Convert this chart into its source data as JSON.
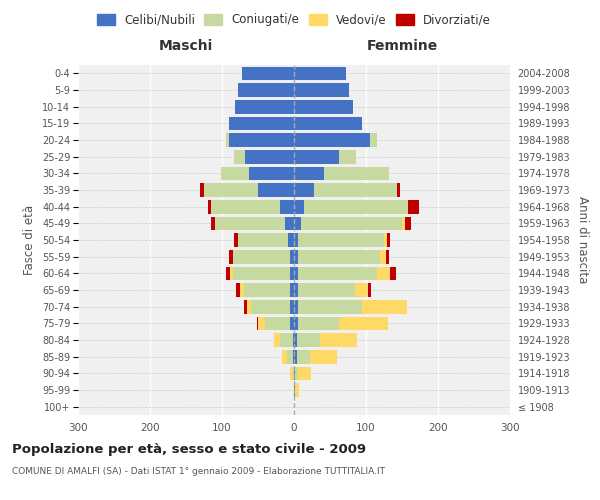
{
  "age_groups": [
    "100+",
    "95-99",
    "90-94",
    "85-89",
    "80-84",
    "75-79",
    "70-74",
    "65-69",
    "60-64",
    "55-59",
    "50-54",
    "45-49",
    "40-44",
    "35-39",
    "30-34",
    "25-29",
    "20-24",
    "15-19",
    "10-14",
    "5-9",
    "0-4"
  ],
  "birth_years": [
    "≤ 1908",
    "1909-1913",
    "1914-1918",
    "1919-1923",
    "1924-1928",
    "1929-1933",
    "1934-1938",
    "1939-1943",
    "1944-1948",
    "1949-1953",
    "1954-1958",
    "1959-1963",
    "1964-1968",
    "1969-1973",
    "1974-1978",
    "1979-1983",
    "1984-1988",
    "1989-1993",
    "1994-1998",
    "1999-2003",
    "2004-2008"
  ],
  "m_cel": [
    0,
    0,
    0,
    2,
    2,
    5,
    5,
    5,
    5,
    5,
    8,
    12,
    20,
    50,
    62,
    68,
    90,
    90,
    82,
    78,
    72
  ],
  "m_con": [
    0,
    0,
    2,
    8,
    18,
    35,
    55,
    65,
    80,
    80,
    70,
    98,
    95,
    75,
    40,
    15,
    5,
    0,
    0,
    0,
    0
  ],
  "m_ved": [
    0,
    0,
    4,
    6,
    8,
    10,
    5,
    5,
    4,
    0,
    0,
    0,
    0,
    0,
    0,
    0,
    0,
    0,
    0,
    0,
    0
  ],
  "m_div": [
    0,
    0,
    0,
    0,
    0,
    2,
    5,
    5,
    5,
    5,
    5,
    5,
    4,
    5,
    0,
    0,
    0,
    0,
    0,
    0,
    0
  ],
  "f_nub": [
    0,
    2,
    2,
    4,
    4,
    5,
    5,
    5,
    5,
    5,
    5,
    10,
    14,
    28,
    42,
    62,
    105,
    95,
    82,
    76,
    72
  ],
  "f_con": [
    0,
    0,
    4,
    18,
    32,
    58,
    90,
    80,
    110,
    115,
    120,
    140,
    145,
    115,
    90,
    24,
    10,
    0,
    0,
    0,
    0
  ],
  "f_ved": [
    0,
    5,
    18,
    38,
    52,
    68,
    62,
    18,
    18,
    8,
    4,
    4,
    0,
    0,
    0,
    0,
    0,
    0,
    0,
    0,
    0
  ],
  "f_div": [
    0,
    0,
    0,
    0,
    0,
    0,
    0,
    4,
    8,
    4,
    4,
    8,
    14,
    4,
    0,
    0,
    0,
    0,
    0,
    0,
    0
  ],
  "colors": {
    "celibe": "#4472C4",
    "coniugato": "#c5d9a0",
    "vedovo": "#FFD966",
    "divorziato": "#C00000"
  },
  "xlim": 300,
  "title": "Popolazione per età, sesso e stato civile - 2009",
  "subtitle": "COMUNE DI AMALFI (SA) - Dati ISTAT 1° gennaio 2009 - Elaborazione TUTTITALIA.IT",
  "ylabel_left": "Fasce di età",
  "ylabel_right": "Anni di nascita",
  "xlabel_maschi": "Maschi",
  "xlabel_femmine": "Femmine",
  "legend_labels": [
    "Celibi/Nubili",
    "Coniugati/e",
    "Vedovi/e",
    "Divorziati/e"
  ],
  "bg_color": "#f0f0f0"
}
